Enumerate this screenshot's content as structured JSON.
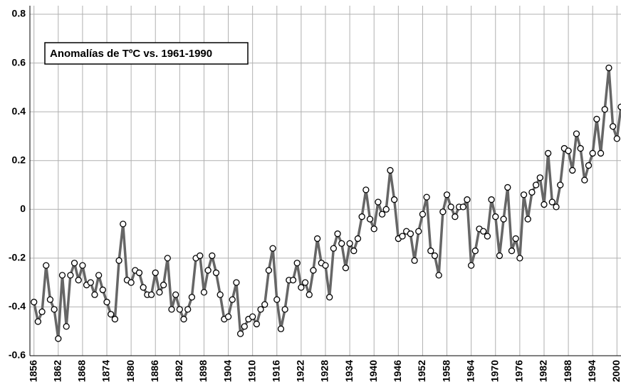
{
  "chart_data": {
    "type": "line",
    "title": "Anomalías de TºC vs. 1961-1990",
    "x": [
      1856,
      1857,
      1858,
      1859,
      1860,
      1861,
      1862,
      1863,
      1864,
      1865,
      1866,
      1867,
      1868,
      1869,
      1870,
      1871,
      1872,
      1873,
      1874,
      1875,
      1876,
      1877,
      1878,
      1879,
      1880,
      1881,
      1882,
      1883,
      1884,
      1885,
      1886,
      1887,
      1888,
      1889,
      1890,
      1891,
      1892,
      1893,
      1894,
      1895,
      1896,
      1897,
      1898,
      1899,
      1900,
      1901,
      1902,
      1903,
      1904,
      1905,
      1906,
      1907,
      1908,
      1909,
      1910,
      1911,
      1912,
      1913,
      1914,
      1915,
      1916,
      1917,
      1918,
      1919,
      1920,
      1921,
      1922,
      1923,
      1924,
      1925,
      1926,
      1927,
      1928,
      1929,
      1930,
      1931,
      1932,
      1933,
      1934,
      1935,
      1936,
      1937,
      1938,
      1939,
      1940,
      1941,
      1942,
      1943,
      1944,
      1945,
      1946,
      1947,
      1948,
      1949,
      1950,
      1951,
      1952,
      1953,
      1954,
      1955,
      1956,
      1957,
      1958,
      1959,
      1960,
      1961,
      1962,
      1963,
      1964,
      1965,
      1966,
      1967,
      1968,
      1969,
      1970,
      1971,
      1972,
      1973,
      1974,
      1975,
      1976,
      1977,
      1978,
      1979,
      1980,
      1981,
      1982,
      1983,
      1984,
      1985,
      1986,
      1987,
      1988,
      1989,
      1990,
      1991,
      1992,
      1993,
      1994,
      1995,
      1996,
      1997,
      1998,
      1999,
      2000,
      2001
    ],
    "series": [
      {
        "color": "#666666",
        "values": [
          -0.38,
          -0.46,
          -0.42,
          -0.23,
          -0.37,
          -0.41,
          -0.53,
          -0.27,
          -0.48,
          -0.27,
          -0.22,
          -0.29,
          -0.23,
          -0.31,
          -0.3,
          -0.35,
          -0.27,
          -0.33,
          -0.38,
          -0.43,
          -0.45,
          -0.21,
          -0.06,
          -0.29,
          -0.3,
          -0.25,
          -0.26,
          -0.32,
          -0.35,
          -0.35,
          -0.26,
          -0.34,
          -0.31,
          -0.2,
          -0.41,
          -0.35,
          -0.41,
          -0.45,
          -0.41,
          -0.36,
          -0.2,
          -0.19,
          -0.34,
          -0.25,
          -0.19,
          -0.26,
          -0.35,
          -0.45,
          -0.44,
          -0.37,
          -0.3,
          -0.51,
          -0.48,
          -0.45,
          -0.44,
          -0.47,
          -0.41,
          -0.39,
          -0.25,
          -0.16,
          -0.37,
          -0.49,
          -0.41,
          -0.29,
          -0.29,
          -0.22,
          -0.32,
          -0.3,
          -0.35,
          -0.25,
          -0.12,
          -0.22,
          -0.23,
          -0.36,
          -0.16,
          -0.1,
          -0.14,
          -0.24,
          -0.14,
          -0.17,
          -0.12,
          -0.03,
          0.08,
          -0.04,
          -0.08,
          0.03,
          -0.02,
          0.0,
          0.16,
          0.04,
          -0.12,
          -0.11,
          -0.09,
          -0.1,
          -0.21,
          -0.09,
          -0.02,
          0.05,
          -0.17,
          -0.19,
          -0.27,
          -0.01,
          0.06,
          0.01,
          -0.03,
          0.01,
          0.01,
          0.04,
          -0.23,
          -0.17,
          -0.08,
          -0.09,
          -0.11,
          0.04,
          -0.03,
          -0.19,
          -0.04,
          0.09,
          -0.17,
          -0.12,
          -0.2,
          0.06,
          -0.04,
          0.07,
          0.1,
          0.13,
          0.02,
          0.23,
          0.03,
          0.01,
          0.1,
          0.25,
          0.24,
          0.16,
          0.31,
          0.25,
          0.12,
          0.18,
          0.23,
          0.37,
          0.23,
          0.41,
          0.58,
          0.34,
          0.29,
          0.42
        ]
      }
    ],
    "xlim": [
      1855,
      2001
    ],
    "xticks": [
      1856,
      1862,
      1868,
      1874,
      1880,
      1886,
      1892,
      1898,
      1904,
      1910,
      1916,
      1922,
      1928,
      1934,
      1940,
      1946,
      1952,
      1958,
      1964,
      1970,
      1976,
      1982,
      1988,
      1994,
      2000
    ],
    "ylim": [
      -0.6,
      0.8
    ],
    "yticks": [
      {
        "value": -0.6,
        "label": "-0.6"
      },
      {
        "value": -0.4,
        "label": "-0.4"
      },
      {
        "value": -0.2,
        "label": "-0.2"
      },
      0,
      {
        "value": 0.2,
        "label": "0.2"
      },
      {
        "value": 0.4,
        "label": "0.4"
      },
      {
        "value": 0.6,
        "label": "0.6"
      },
      {
        "value": 0.8,
        "label": "0.8"
      }
    ],
    "grid": true
  }
}
